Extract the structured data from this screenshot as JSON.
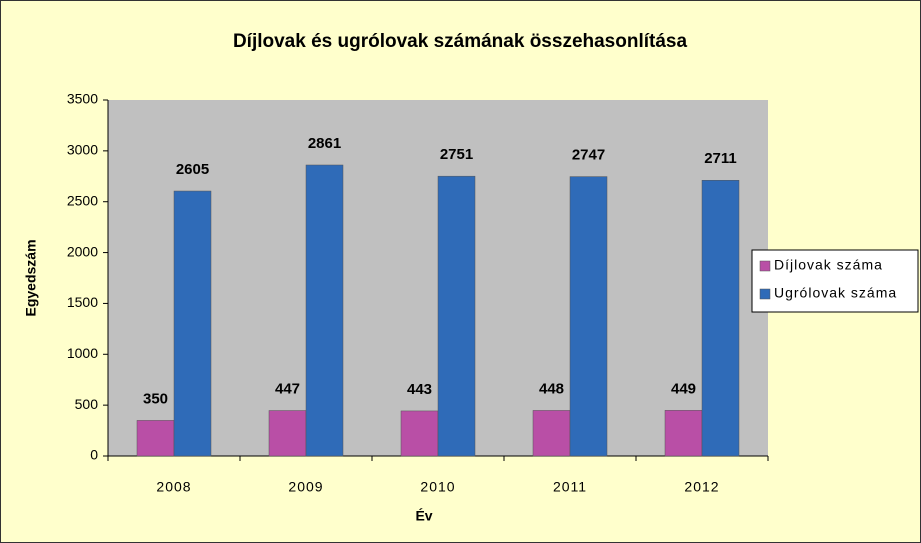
{
  "chart_data": {
    "type": "bar",
    "title": "Díjlovak és ugrólovak számának összehasonlítása",
    "x_label": "Év",
    "y_label": "Egyedszám",
    "categories": [
      "2008",
      "2009",
      "2010",
      "2011",
      "2012"
    ],
    "series": [
      {
        "name": "Díjlovak száma",
        "color": "#b94fa6",
        "values": [
          350,
          447,
          443,
          448,
          449
        ]
      },
      {
        "name": "Ugrólovak száma",
        "color": "#2f6bb8",
        "values": [
          2605,
          2861,
          2751,
          2747,
          2711
        ]
      }
    ],
    "ylim": [
      0,
      3500
    ],
    "yticks": [
      0,
      500,
      1000,
      1500,
      2000,
      2500,
      3000,
      3500
    ],
    "grid": false,
    "legend": "right",
    "show_value_labels": true
  }
}
